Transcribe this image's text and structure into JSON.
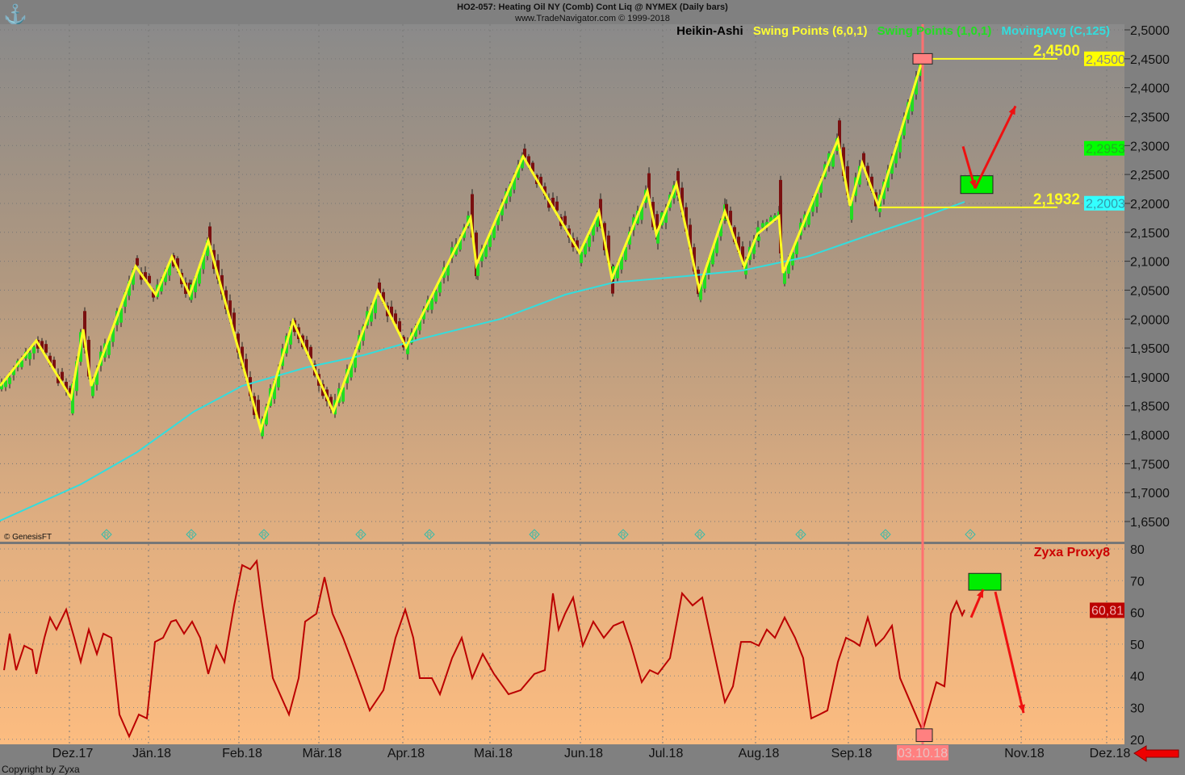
{
  "header": {
    "title": "HO2-057:  Heating Oil NY (Comb) Cont Liq @ NYMEX  (Daily bars)",
    "subtitle": "www.TradeNavigator.com © 1999-2018"
  },
  "legend": [
    {
      "label": "Heikin-Ashi",
      "color": "#000000"
    },
    {
      "label": "Swing Points (6,0,1)",
      "color": "#ffff33"
    },
    {
      "label": "Swing Points (1,0,1)",
      "color": "#22dd22"
    },
    {
      "label": "MovingAvg (C,125)",
      "color": "#33dddd"
    }
  ],
  "genesis": "© GenesisFT",
  "copyright": "Copyright by Zyxa",
  "chart_data": {
    "type": "line",
    "price_pane": {
      "ylim": [
        1.62,
        2.52
      ],
      "yticks": [
        "2,5000",
        "2,4500",
        "2,4000",
        "2,3500",
        "2,3000",
        "2,2500",
        "2,2000",
        "2,1500",
        "2,1000",
        "2,0500",
        "2,0000",
        "1,9500",
        "1,9000",
        "1,8500",
        "1,8000",
        "1,7500",
        "1,7000",
        "1,6500"
      ],
      "swing_points_6": [
        [
          0,
          1.8845
        ],
        [
          9,
          1.9627
        ],
        [
          17.6,
          1.8636
        ],
        [
          20.6,
          1.9822
        ],
        [
          22.6,
          1.8845
        ],
        [
          33.6,
          2.0911
        ],
        [
          38.6,
          2.0422
        ],
        [
          42.6,
          2.1079
        ],
        [
          47,
          2.0422
        ],
        [
          51.6,
          2.1357
        ],
        [
          64.6,
          1.8091
        ],
        [
          72.6,
          1.9962
        ],
        [
          82.6,
          1.8399
        ],
        [
          93.6,
          2.0492
        ],
        [
          100.6,
          1.9515
        ],
        [
          116.6,
          2.1748
        ],
        [
          118,
          2.0939
        ],
        [
          129.6,
          2.2812
        ],
        [
          143.6,
          2.1148
        ],
        [
          148.4,
          2.186
        ],
        [
          151.6,
          2.0701
        ],
        [
          160.4,
          2.2209
        ],
        [
          162.6,
          2.1469
        ],
        [
          167.6,
          2.2334
        ],
        [
          173.2,
          2.052
        ],
        [
          179.6,
          2.186
        ],
        [
          184.4,
          2.0911
        ],
        [
          187.6,
          2.1469
        ],
        [
          193,
          2.1776
        ],
        [
          194,
          2.0799
        ],
        [
          207.6,
          2.3102
        ],
        [
          210.6,
          2.1958
        ],
        [
          213.6,
          2.2697
        ],
        [
          217.6,
          2.1958
        ],
        [
          228.6,
          2.45
        ]
      ],
      "moving_avg_125": [
        [
          0,
          1.6514
        ],
        [
          20,
          1.7142
        ],
        [
          34,
          1.7701
        ],
        [
          48,
          1.8399
        ],
        [
          60,
          1.8845
        ],
        [
          76,
          1.9166
        ],
        [
          90,
          1.9375
        ],
        [
          104,
          1.9654
        ],
        [
          124,
          2.0003
        ],
        [
          140,
          2.0422
        ],
        [
          152,
          2.0632
        ],
        [
          170,
          2.0743
        ],
        [
          184,
          2.0841
        ],
        [
          200,
          2.1079
        ],
        [
          216,
          2.1469
        ],
        [
          228,
          2.1748
        ],
        [
          239,
          2.2027
        ]
      ],
      "last_bar_x": 238.6,
      "levels": [
        {
          "value": 2.45,
          "label": "2,4500",
          "x_from": 228.6,
          "x_to": 262
        },
        {
          "value": 2.1932,
          "label": "2,1932",
          "x_from": 217.6,
          "x_to": 262
        }
      ],
      "price_tags": [
        {
          "label": "2,4500",
          "value": 2.45,
          "bg": "#ffff00",
          "fg": "#888888"
        },
        {
          "label": "2,2953",
          "value": 2.2953,
          "bg": "#00ff00",
          "fg": "#22aa22"
        },
        {
          "label": "2,2003",
          "value": 2.2003,
          "bg": "#33ffff",
          "fg": "#3399aa"
        }
      ],
      "arrows": [
        [
          [
            238.6,
            2.2985
          ],
          [
            241.6,
            2.2259
          ]
        ],
        [
          [
            241.6,
            2.2259
          ],
          [
            251.6,
            2.3683
          ]
        ]
      ],
      "boxes": [
        {
          "x": [
            238,
            246
          ],
          "y": [
            2.2478,
            2.2171
          ],
          "color": "#00ee00"
        },
        {
          "x": [
            226.2,
            231
          ],
          "y": [
            2.459,
            2.441
          ],
          "color": "#ff8080"
        }
      ],
      "markers": [
        {
          "x": 26.4,
          "label": "R"
        },
        {
          "x": 47.4,
          "label": "R"
        },
        {
          "x": 65.4,
          "label": "R"
        },
        {
          "x": 89.4,
          "label": "R"
        },
        {
          "x": 106.4,
          "label": "R"
        },
        {
          "x": 132.4,
          "label": "R"
        },
        {
          "x": 154.4,
          "label": "R"
        },
        {
          "x": 173.4,
          "label": "R"
        },
        {
          "x": 198.4,
          "label": "R"
        },
        {
          "x": 219.4,
          "label": "R"
        },
        {
          "x": 240.4,
          "label": "?"
        }
      ]
    },
    "oscillator_pane": {
      "title": "Zyxa Proxy8",
      "ylim": [
        18,
        82
      ],
      "yticks": [
        "80",
        "70",
        "60",
        "50",
        "40",
        "30",
        "20"
      ],
      "tick_values": [
        80,
        70,
        60,
        50,
        40,
        30,
        20
      ],
      "last_value_label": "60,81",
      "series": [
        [
          1,
          41.8
        ],
        [
          2.4,
          53.3
        ],
        [
          4,
          41.8
        ],
        [
          6,
          49.5
        ],
        [
          8,
          48.2
        ],
        [
          9,
          40.6
        ],
        [
          11,
          52
        ],
        [
          12.4,
          58.4
        ],
        [
          14,
          54.6
        ],
        [
          16.4,
          60.9
        ],
        [
          18.4,
          52
        ],
        [
          20,
          44.4
        ],
        [
          22,
          54.6
        ],
        [
          24,
          46.9
        ],
        [
          25.6,
          53.3
        ],
        [
          27.6,
          52
        ],
        [
          29.6,
          27.8
        ],
        [
          32,
          20.9
        ],
        [
          34.4,
          27.8
        ],
        [
          36.4,
          26.6
        ],
        [
          38.4,
          50.7
        ],
        [
          40.4,
          52
        ],
        [
          42.4,
          57.1
        ],
        [
          43.6,
          57.6
        ],
        [
          45.6,
          53.3
        ],
        [
          47.6,
          57.1
        ],
        [
          49.6,
          52
        ],
        [
          51.6,
          40.6
        ],
        [
          53.6,
          49.5
        ],
        [
          55.6,
          44.4
        ],
        [
          58,
          62.2
        ],
        [
          60,
          74.9
        ],
        [
          62,
          73.6
        ],
        [
          63.6,
          76.2
        ],
        [
          65,
          62.2
        ],
        [
          67.6,
          39.3
        ],
        [
          71.6,
          27.8
        ],
        [
          74,
          39.3
        ],
        [
          75.6,
          57.1
        ],
        [
          78.4,
          59.6
        ],
        [
          80.4,
          71.1
        ],
        [
          82.4,
          59.6
        ],
        [
          85,
          52
        ],
        [
          88,
          41.8
        ],
        [
          91.6,
          29.1
        ],
        [
          95,
          35.5
        ],
        [
          98,
          52
        ],
        [
          100.4,
          60.9
        ],
        [
          102.4,
          52
        ],
        [
          104,
          39.3
        ],
        [
          107,
          39.3
        ],
        [
          109,
          34.2
        ],
        [
          112,
          45.6
        ],
        [
          114.4,
          52
        ],
        [
          117,
          39.3
        ],
        [
          119.6,
          46.9
        ],
        [
          122.4,
          40.6
        ],
        [
          126,
          34.2
        ],
        [
          129,
          35.5
        ],
        [
          132.4,
          40.6
        ],
        [
          135,
          41.8
        ],
        [
          137,
          66
        ],
        [
          138.4,
          54.6
        ],
        [
          140,
          59.6
        ],
        [
          142,
          64.7
        ],
        [
          144.4,
          49.5
        ],
        [
          147,
          57.1
        ],
        [
          149.6,
          52
        ],
        [
          152,
          55.8
        ],
        [
          154.4,
          57.1
        ],
        [
          156.4,
          49.5
        ],
        [
          159,
          38
        ],
        [
          161,
          41.8
        ],
        [
          163,
          40.6
        ],
        [
          166,
          45.6
        ],
        [
          169,
          66
        ],
        [
          171.6,
          62.2
        ],
        [
          174,
          64.7
        ],
        [
          177,
          46.9
        ],
        [
          179.6,
          31.7
        ],
        [
          181.6,
          36.7
        ],
        [
          183.6,
          50.7
        ],
        [
          186,
          50.7
        ],
        [
          188,
          49.5
        ],
        [
          190,
          54.6
        ],
        [
          192,
          52
        ],
        [
          194.4,
          58.4
        ],
        [
          197,
          52
        ],
        [
          199,
          45.6
        ],
        [
          201,
          26.6
        ],
        [
          203,
          27.8
        ],
        [
          205,
          29.1
        ],
        [
          207.6,
          44.4
        ],
        [
          209.6,
          52
        ],
        [
          211.6,
          50.7
        ],
        [
          213,
          49.5
        ],
        [
          215,
          58.4
        ],
        [
          217,
          49.5
        ],
        [
          219,
          52
        ],
        [
          221,
          55.8
        ],
        [
          223,
          39.3
        ],
        [
          226,
          30.4
        ],
        [
          228.6,
          22.7
        ],
        [
          230,
          29.1
        ],
        [
          232,
          38
        ],
        [
          234,
          36.7
        ],
        [
          235.6,
          59.6
        ],
        [
          237,
          63.5
        ],
        [
          238.4,
          59.1
        ],
        [
          239,
          60.8
        ]
      ],
      "arrows": [
        [
          [
            240.6,
            58.4
          ],
          [
            243.6,
            67.3
          ]
        ],
        [
          [
            246.6,
            66.5
          ],
          [
            253.6,
            28.3
          ]
        ]
      ],
      "boxes": [
        {
          "x": [
            240,
            248
          ],
          "y": [
            72.3,
            67
          ],
          "color": "#00ee00"
        },
        {
          "x": [
            227,
            231
          ],
          "y": [
            23.3,
            19.3
          ],
          "color": "#ff8080"
        }
      ]
    },
    "x_axis": {
      "labels": [
        {
          "x": 18,
          "label": "Dez.17"
        },
        {
          "x": 37.6,
          "label": "Jän.18"
        },
        {
          "x": 60,
          "label": "Feb.18"
        },
        {
          "x": 79.8,
          "label": "Mär.18"
        },
        {
          "x": 100.6,
          "label": "Apr.18"
        },
        {
          "x": 122.2,
          "label": "Mai.18"
        },
        {
          "x": 144.6,
          "label": "Jun.18"
        },
        {
          "x": 165,
          "label": "Jul.18"
        },
        {
          "x": 188,
          "label": "Aug.18"
        },
        {
          "x": 211,
          "label": "Sep.18"
        },
        {
          "x": 253.8,
          "label": "Nov.18"
        },
        {
          "x": 275,
          "label": "Dez.18"
        }
      ],
      "cursor": {
        "x": 228.6,
        "label": "03.10.18"
      }
    }
  }
}
